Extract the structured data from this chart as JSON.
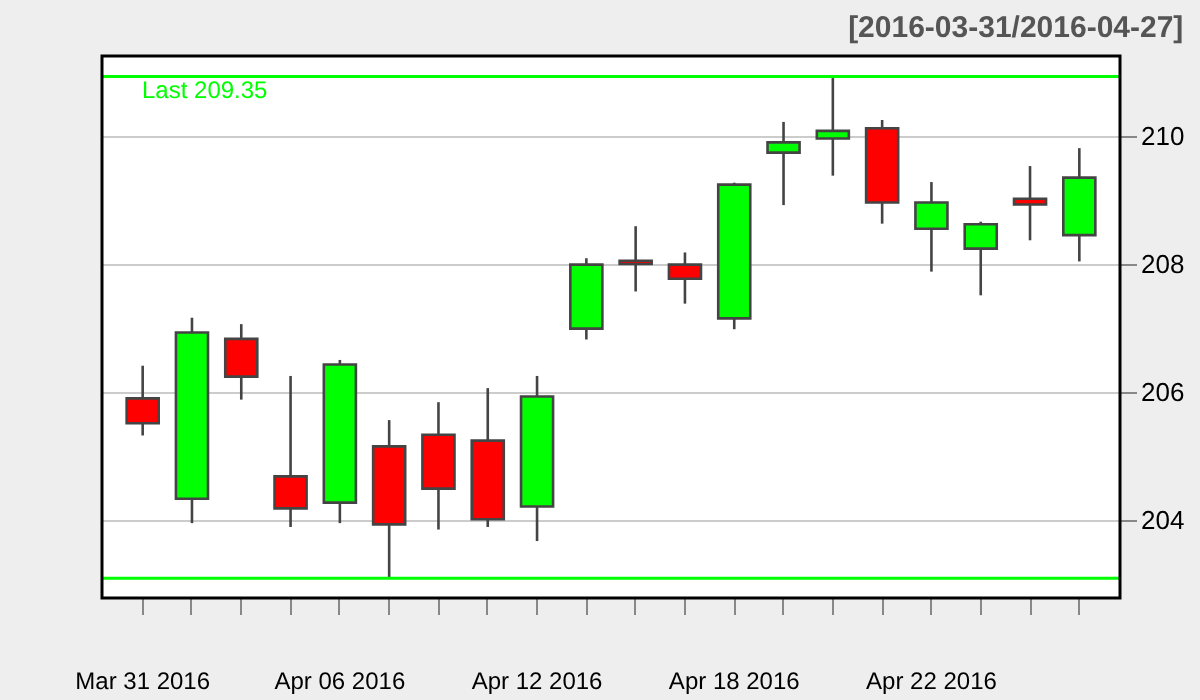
{
  "chart_data": {
    "type": "candlestick",
    "title": "[2016-03-31/2016-04-27]",
    "categories": [
      "Mar 31 2016",
      null,
      null,
      null,
      "Apr 06 2016",
      null,
      null,
      null,
      "Apr 12 2016",
      null,
      null,
      null,
      "Apr 18 2016",
      null,
      null,
      null,
      "Apr 22 2016",
      null,
      null,
      null
    ],
    "ohlc": [
      [
        205.9,
        206.41,
        205.32,
        205.51
      ],
      [
        204.33,
        207.16,
        203.95,
        206.93
      ],
      [
        206.83,
        207.06,
        205.88,
        206.24
      ],
      [
        204.68,
        206.25,
        203.89,
        204.18
      ],
      [
        204.27,
        206.5,
        203.95,
        206.43
      ],
      [
        205.15,
        205.56,
        203.09,
        203.93
      ],
      [
        205.33,
        205.84,
        203.85,
        204.49
      ],
      [
        205.24,
        206.06,
        203.89,
        204.01
      ],
      [
        204.21,
        206.25,
        203.67,
        205.93
      ],
      [
        206.99,
        208.09,
        206.82,
        207.99
      ],
      [
        208.05,
        208.59,
        207.57,
        208.0
      ],
      [
        207.99,
        208.18,
        207.38,
        207.77
      ],
      [
        207.15,
        209.27,
        206.98,
        209.24
      ],
      [
        209.74,
        210.22,
        208.92,
        209.9
      ],
      [
        209.96,
        210.93,
        209.38,
        210.08
      ],
      [
        210.12,
        210.25,
        208.63,
        208.96
      ],
      [
        208.55,
        209.28,
        207.88,
        208.96
      ],
      [
        208.24,
        208.66,
        207.51,
        208.62
      ],
      [
        209.02,
        209.53,
        208.37,
        208.93
      ],
      [
        208.45,
        209.81,
        208.04,
        209.35
      ]
    ],
    "colors": [
      "#ff0000",
      "#00ff00",
      "#ff0000",
      "#ff0000",
      "#00ff00",
      "#ff0000",
      "#ff0000",
      "#ff0000",
      "#00ff00",
      "#00ff00",
      "#ff0000",
      "#ff0000",
      "#00ff00",
      "#00ff00",
      "#00ff00",
      "#ff0000",
      "#00ff00",
      "#00ff00",
      "#ff0000",
      "#00ff00"
    ],
    "ylim": [
      202.78,
      211.25
    ],
    "yticks": [
      204,
      206,
      208,
      210
    ],
    "grid": "y",
    "ref_lines": [
      {
        "axis": "y",
        "value": 210.93,
        "label": "Last 209.35",
        "color": "#00ff00"
      },
      {
        "axis": "y",
        "value": 203.09,
        "label": null,
        "color": "#00ff00"
      }
    ]
  }
}
